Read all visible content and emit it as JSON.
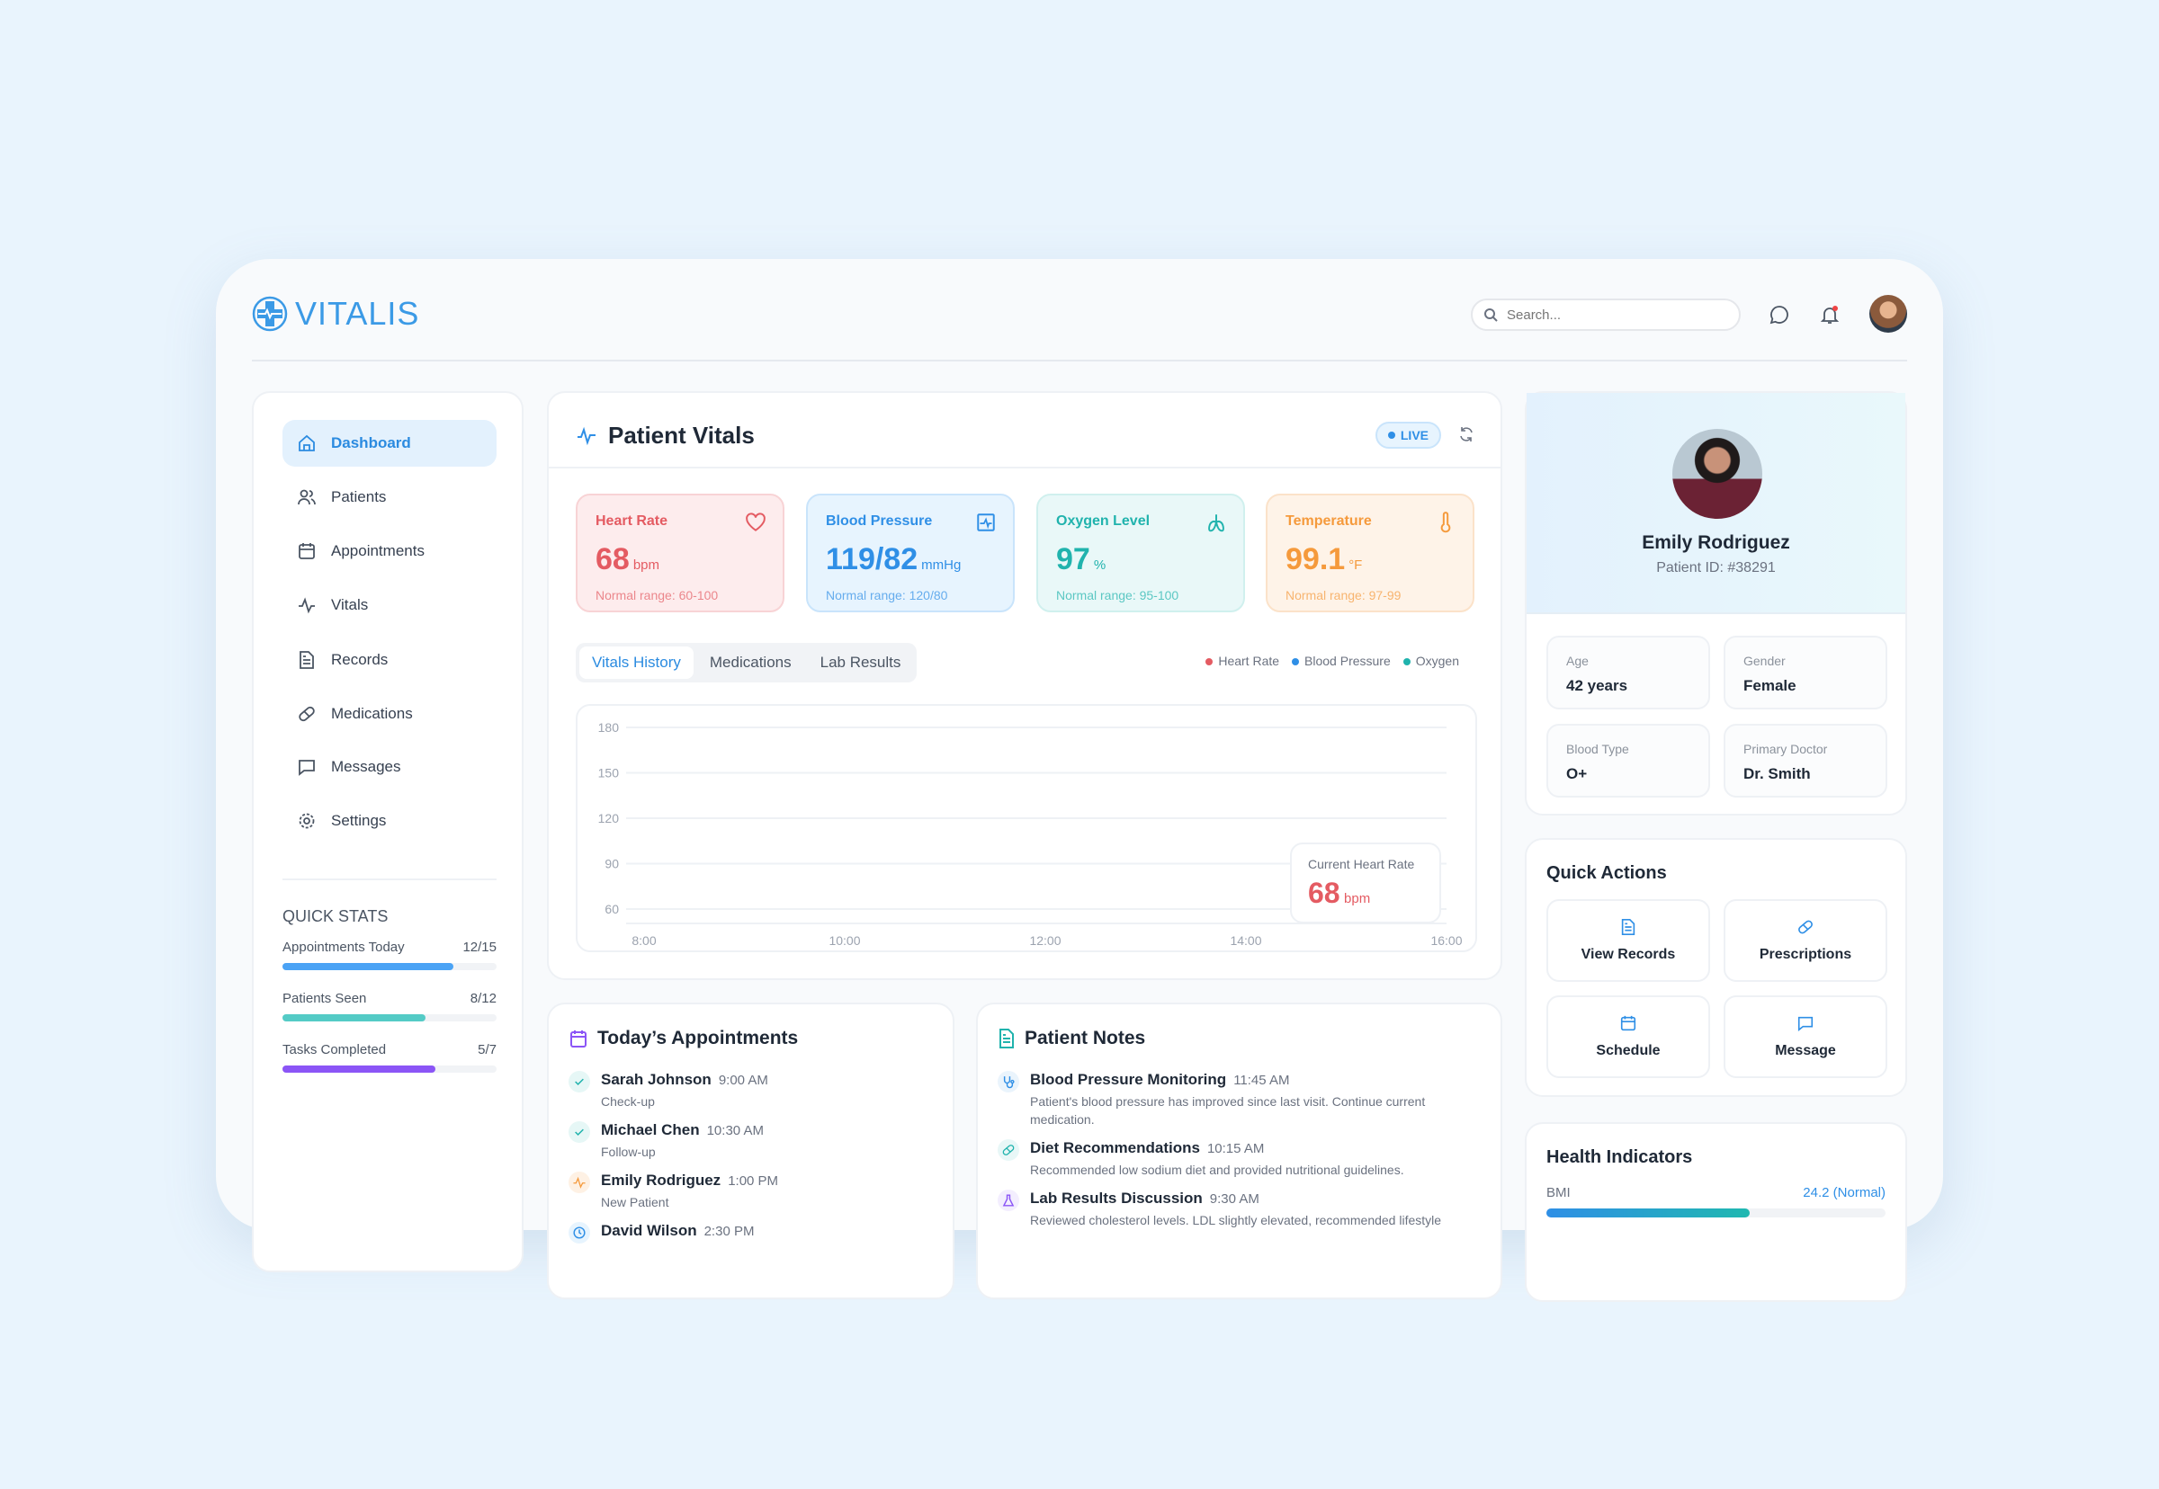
{
  "app": {
    "name": "VITALIS",
    "search_placeholder": "Search..."
  },
  "sidebar": {
    "items": [
      {
        "label": "Dashboard",
        "icon": "home-icon",
        "active": true
      },
      {
        "label": "Patients",
        "icon": "users-icon"
      },
      {
        "label": "Appointments",
        "icon": "calendar-icon"
      },
      {
        "label": "Vitals",
        "icon": "activity-icon"
      },
      {
        "label": "Records",
        "icon": "file-icon"
      },
      {
        "label": "Medications",
        "icon": "pill-icon"
      },
      {
        "label": "Messages",
        "icon": "message-icon"
      },
      {
        "label": "Settings",
        "icon": "gear-icon"
      }
    ],
    "quick_stats": {
      "title": "QUICK STATS",
      "items": [
        {
          "label": "Appointments Today",
          "value": "12/15",
          "fraction": 0.8,
          "color": "#4ba3f5"
        },
        {
          "label": "Patients Seen",
          "value": "8/12",
          "fraction": 0.667,
          "color": "#54cbc6"
        },
        {
          "label": "Tasks Completed",
          "value": "5/7",
          "fraction": 0.714,
          "color": "#8b55f6"
        }
      ]
    }
  },
  "vitals": {
    "title": "Patient Vitals",
    "live": "LIVE",
    "cards": [
      {
        "title": "Heart Rate",
        "value": "68",
        "unit": "bpm",
        "range": "Normal range: 60-100",
        "color": "#e45b62",
        "bg": "#fdeced",
        "border": "#f8d3d5",
        "icon": "heart-icon"
      },
      {
        "title": "Blood Pressure",
        "value": "119/82",
        "unit": "mmHg",
        "range": "Normal range: 120/80",
        "color": "#2f8fe6",
        "bg": "#e7f4fe",
        "border": "#c9e4fb",
        "icon": "monitor-pulse-icon"
      },
      {
        "title": "Oxygen Level",
        "value": "97",
        "unit": "%",
        "range": "Normal range: 95-100",
        "color": "#20b3ad",
        "bg": "#e9f8f8",
        "border": "#d0f0ee",
        "icon": "lungs-icon"
      },
      {
        "title": "Temperature",
        "value": "99.1",
        "unit": "°F",
        "range": "Normal range: 97-99",
        "color": "#f59a3c",
        "bg": "#fef3e8",
        "border": "#fbe2c9",
        "icon": "thermometer-icon"
      }
    ],
    "tabs": [
      "Vitals History",
      "Medications",
      "Lab Results"
    ],
    "tooltip": {
      "label": "Current Heart Rate",
      "value": "68",
      "unit": "bpm"
    }
  },
  "chart_data": {
    "type": "line",
    "x_ticks": [
      "8:00",
      "10:00",
      "12:00",
      "14:00",
      "16:00"
    ],
    "y_ticks": [
      180,
      150,
      120,
      90,
      60
    ],
    "ylim": [
      60,
      180
    ],
    "grid": true,
    "legend_position": "top-right",
    "series": [
      {
        "name": "Heart Rate",
        "color": "#e45b62",
        "values": []
      },
      {
        "name": "Blood Pressure",
        "color": "#2f8fe6",
        "values": []
      },
      {
        "name": "Oxygen",
        "color": "#20b3ad",
        "values": []
      }
    ]
  },
  "appointments": {
    "title": "Today’s Appointments",
    "items": [
      {
        "name": "Sarah Johnson",
        "time": "9:00 AM",
        "type": "Check-up",
        "status": "done"
      },
      {
        "name": "Michael Chen",
        "time": "10:30 AM",
        "type": "Follow-up",
        "status": "done"
      },
      {
        "name": "Emily Rodriguez",
        "time": "1:00 PM",
        "type": "New Patient",
        "status": "current"
      },
      {
        "name": "David Wilson",
        "time": "2:30 PM",
        "type": "",
        "status": "upcoming"
      }
    ]
  },
  "notes": {
    "title": "Patient Notes",
    "items": [
      {
        "title": "Blood Pressure Monitoring",
        "time": "11:45 AM",
        "text": "Patient's blood pressure has improved since last visit. Continue current medication.",
        "icon": "stethoscope-icon",
        "color": "#2f8fe6"
      },
      {
        "title": "Diet Recommendations",
        "time": "10:15 AM",
        "text": "Recommended low sodium diet and provided nutritional guidelines.",
        "icon": "pill-icon",
        "color": "#20b3ad"
      },
      {
        "title": "Lab Results Discussion",
        "time": "9:30 AM",
        "text": "Reviewed cholesterol levels. LDL slightly elevated, recommended lifestyle",
        "icon": "flask-icon",
        "color": "#8b55f6"
      }
    ]
  },
  "patient": {
    "name": "Emily Rodriguez",
    "id": "Patient ID: #38291",
    "fields": [
      {
        "label": "Age",
        "value": "42 years"
      },
      {
        "label": "Gender",
        "value": "Female"
      },
      {
        "label": "Blood Type",
        "value": "O+"
      },
      {
        "label": "Primary Doctor",
        "value": "Dr. Smith"
      }
    ]
  },
  "quick_actions": {
    "title": "Quick Actions",
    "items": [
      {
        "label": "View Records",
        "icon": "file-icon"
      },
      {
        "label": "Prescriptions",
        "icon": "pill-icon"
      },
      {
        "label": "Schedule",
        "icon": "calendar-icon"
      },
      {
        "label": "Message",
        "icon": "message-icon"
      }
    ]
  },
  "health": {
    "title": "Health Indicators",
    "bmi_label": "BMI",
    "bmi_value": "24.2 (Normal)",
    "bmi_fraction": 0.6
  }
}
